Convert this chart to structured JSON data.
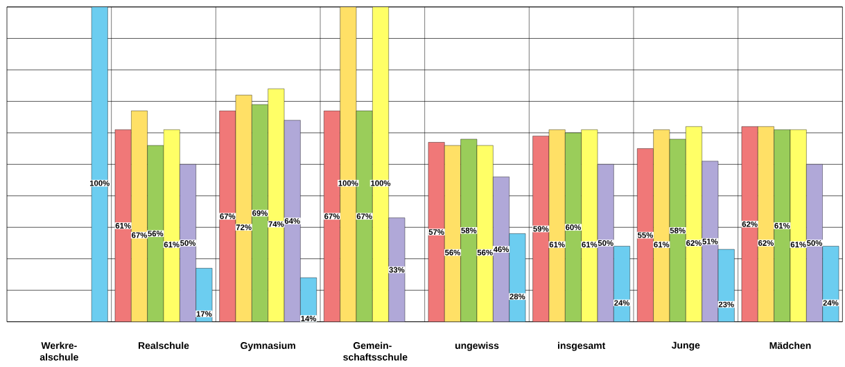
{
  "chart_data": {
    "type": "bar",
    "categories": [
      "Werkre-alschule",
      "Realschule",
      "Gymnasium",
      "Gemein-schaftsschule",
      "ungewiss",
      "insgesamt",
      "Junge",
      "Mädchen"
    ],
    "ylim": [
      0,
      100
    ],
    "yticks": [
      {
        "value": 0,
        "label": null
      },
      {
        "value": 10,
        "label": null
      },
      {
        "value": 20,
        "label": null
      },
      {
        "value": 30,
        "label": null
      },
      {
        "value": 40,
        "label": null
      },
      {
        "value": 50,
        "label": null
      },
      {
        "value": 60,
        "label": null
      },
      {
        "value": 70,
        "label": null
      },
      {
        "value": 80,
        "label": null
      },
      {
        "value": 90,
        "label": null
      },
      {
        "value": 100,
        "label": null
      }
    ],
    "grid": true,
    "series": [
      {
        "color": "#f07878",
        "values": [
          null,
          61,
          67,
          67,
          57,
          59,
          55,
          62
        ],
        "value_labels": [
          null,
          "61%",
          "67%",
          "67%",
          "57%",
          "59%",
          "55%",
          "62%"
        ]
      },
      {
        "color": "#ffe066",
        "values": [
          null,
          67,
          72,
          100,
          56,
          61,
          61,
          62
        ],
        "value_labels": [
          null,
          "67%",
          "72%",
          "100%",
          "56%",
          "61%",
          "61%",
          "62%"
        ]
      },
      {
        "color": "#9acd5a",
        "values": [
          null,
          56,
          69,
          67,
          58,
          60,
          58,
          61
        ],
        "value_labels": [
          null,
          "56%",
          "69%",
          "67%",
          "58%",
          "60%",
          "58%",
          "61%"
        ]
      },
      {
        "color": "#ffff66",
        "values": [
          null,
          61,
          74,
          100,
          56,
          61,
          62,
          61
        ],
        "value_labels": [
          null,
          "61%",
          "74%",
          "100%",
          "56%",
          "61%",
          "62%",
          "61%"
        ]
      },
      {
        "color": "#b0a8d8",
        "values": [
          null,
          50,
          64,
          33,
          46,
          50,
          51,
          50
        ],
        "value_labels": [
          null,
          "50%",
          "64%",
          "33%",
          "46%",
          "50%",
          "51%",
          "50%"
        ]
      },
      {
        "color": "#6ccdf0",
        "values": [
          100,
          17,
          14,
          null,
          28,
          24,
          23,
          24
        ],
        "value_labels": [
          "100%",
          "17%",
          "14%",
          null,
          "28%",
          "24%",
          "23%",
          "24%"
        ]
      }
    ]
  }
}
